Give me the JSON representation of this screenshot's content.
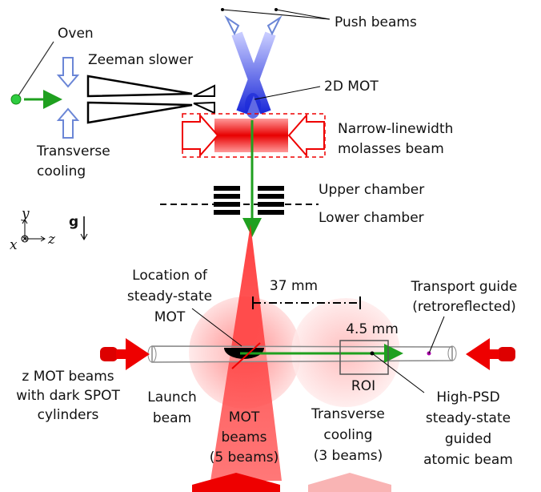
{
  "labels": {
    "oven": [
      "Oven"
    ],
    "push_beams": [
      "Push beams"
    ],
    "zeeman_slower": [
      "Zeeman slower"
    ],
    "mot_2d": [
      "2D MOT"
    ],
    "molasses": [
      "Narrow-linewidth",
      "molasses beam"
    ],
    "transverse_cooling_top": [
      "Transverse",
      "cooling"
    ],
    "upper_chamber": [
      "Upper chamber"
    ],
    "lower_chamber": [
      "Lower chamber"
    ],
    "axes": [
      "y",
      "x",
      "z",
      "g"
    ],
    "steady_state_mot": [
      "Location of",
      "steady-state",
      "MOT"
    ],
    "distance": [
      "37 mm"
    ],
    "transport_guide": [
      "Transport guide",
      "(retroreflected)"
    ],
    "roi_size": [
      "4.5 mm"
    ],
    "roi": [
      "ROI"
    ],
    "z_mot_beams": [
      "z MOT beams",
      "with dark SPOT",
      "cylinders"
    ],
    "launch_beam": [
      "Launch",
      "beam"
    ],
    "mot_beams": [
      "MOT",
      "beams",
      "(5 beams)"
    ],
    "transverse_cooling_bottom": [
      "Transverse",
      "cooling",
      "(3 beams)"
    ],
    "atomic_beam": [
      "High-PSD",
      "steady-state",
      "guided",
      "atomic beam"
    ]
  }
}
